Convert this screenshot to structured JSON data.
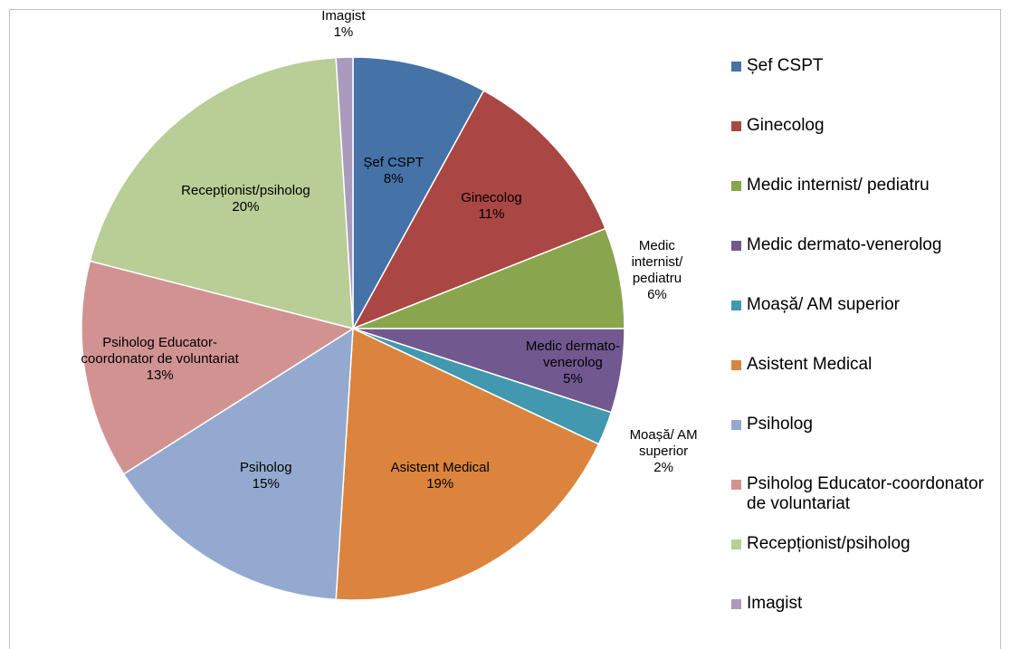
{
  "chart_data": {
    "type": "pie",
    "categories": [
      "Șef CSPT",
      "Ginecolog",
      "Medic internist/ pediatru",
      "Medic dermato-venerolog",
      "Moașă/ AM superior",
      "Asistent Medical",
      "Psiholog",
      "Psiholog Educator-coordonator de voluntariat",
      "Recepționist/psiholog",
      "Imagist"
    ],
    "values": [
      8,
      11,
      6,
      5,
      2,
      19,
      15,
      13,
      20,
      1
    ],
    "value_labels": [
      "8%",
      "11%",
      "6%",
      "5%",
      "2%",
      "19%",
      "15%",
      "13%",
      "20%",
      "1%"
    ],
    "colors": [
      "#4572A7",
      "#AA4643",
      "#89A54E",
      "#71588F",
      "#4198AF",
      "#DB843D",
      "#93A9CF",
      "#D19392",
      "#B9CD96",
      "#A99BBD"
    ],
    "legend": "right"
  }
}
